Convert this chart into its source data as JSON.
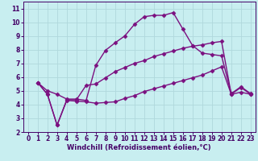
{
  "title": "",
  "xlabel": "Windchill (Refroidissement éolien,°C)",
  "bg_color": "#c8eef0",
  "grid_color": "#b0d8dc",
  "line_color": "#7b1080",
  "xlim": [
    -0.5,
    23.5
  ],
  "ylim": [
    2,
    11.5
  ],
  "xticks": [
    0,
    1,
    2,
    3,
    4,
    5,
    6,
    7,
    8,
    9,
    10,
    11,
    12,
    13,
    14,
    15,
    16,
    17,
    18,
    19,
    20,
    21,
    22,
    23
  ],
  "yticks": [
    2,
    3,
    4,
    5,
    6,
    7,
    8,
    9,
    10,
    11
  ],
  "line1_x": [
    1,
    2,
    3,
    4,
    5,
    6,
    7,
    8,
    9,
    10,
    11,
    12,
    13,
    14,
    15,
    16,
    17,
    18,
    19,
    20,
    21,
    22,
    23
  ],
  "line1_y": [
    5.6,
    5.0,
    4.75,
    4.4,
    4.4,
    4.3,
    6.85,
    7.95,
    8.5,
    9.0,
    9.85,
    10.4,
    10.5,
    10.5,
    10.7,
    9.5,
    8.3,
    7.75,
    7.65,
    7.55,
    4.8,
    5.3,
    4.8
  ],
  "line2_x": [
    1,
    2,
    3,
    4,
    5,
    6,
    7,
    8,
    9,
    10,
    11,
    12,
    13,
    14,
    15,
    16,
    17,
    18,
    19,
    20,
    21,
    22,
    23
  ],
  "line2_y": [
    5.6,
    4.75,
    2.5,
    4.35,
    4.35,
    5.4,
    5.5,
    5.95,
    6.4,
    6.7,
    7.0,
    7.2,
    7.5,
    7.7,
    7.9,
    8.1,
    8.25,
    8.35,
    8.5,
    8.6,
    4.75,
    5.25,
    4.75
  ],
  "line3_x": [
    1,
    2,
    3,
    4,
    5,
    6,
    7,
    8,
    9,
    10,
    11,
    12,
    13,
    14,
    15,
    16,
    17,
    18,
    19,
    20,
    21,
    22,
    23
  ],
  "line3_y": [
    5.6,
    4.75,
    2.5,
    4.3,
    4.25,
    4.2,
    4.1,
    4.15,
    4.2,
    4.45,
    4.65,
    4.95,
    5.15,
    5.35,
    5.55,
    5.75,
    5.95,
    6.15,
    6.45,
    6.75,
    4.75,
    4.9,
    4.75
  ],
  "marker": "D",
  "marker_size": 2.5,
  "line_width": 1.0,
  "label_fontsize": 6,
  "tick_fontsize": 5.5
}
